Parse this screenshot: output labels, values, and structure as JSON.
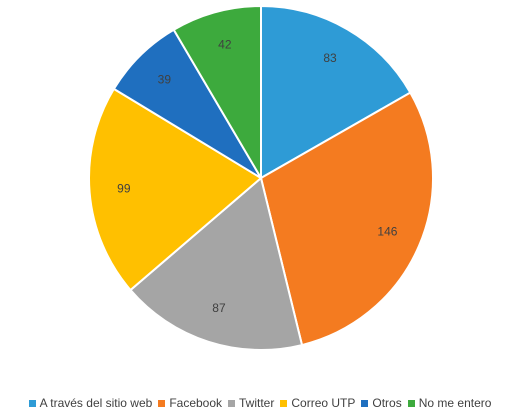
{
  "chart_data": {
    "type": "pie",
    "title": "",
    "legend_position": "bottom",
    "start_angle_deg": 0,
    "direction": "clockwise",
    "slices": [
      {
        "label": "A través del sitio web",
        "value": 83,
        "color": "#2e9bd6"
      },
      {
        "label": "Facebook",
        "value": 146,
        "color": "#f47b20"
      },
      {
        "label": "Twitter",
        "value": 87,
        "color": "#a5a5a5"
      },
      {
        "label": "Correo UTP",
        "value": 99,
        "color": "#ffc000"
      },
      {
        "label": "Otros",
        "value": 39,
        "color": "#1f6fbf"
      },
      {
        "label": "No me entero",
        "value": 42,
        "color": "#3daa3d"
      }
    ]
  }
}
